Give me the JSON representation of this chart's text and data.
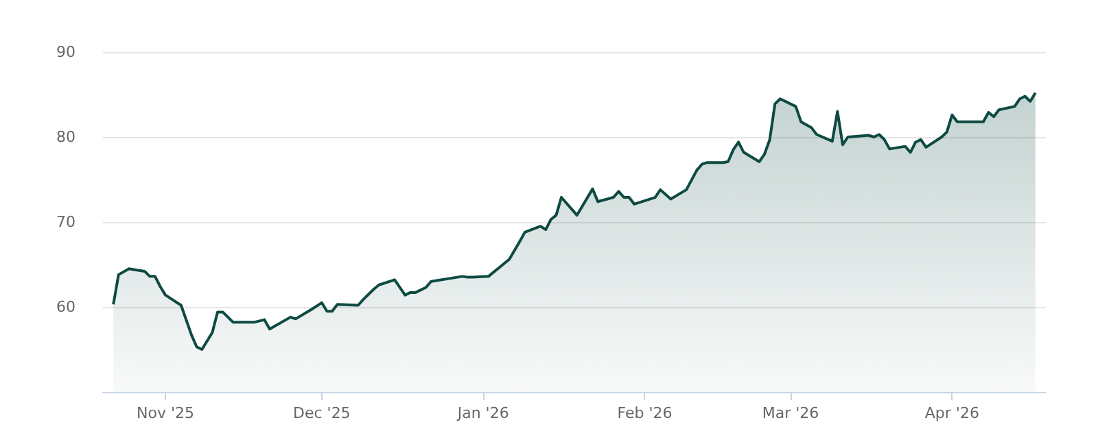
{
  "chart_data": {
    "type": "area",
    "x": [
      "2025-10-22",
      "2025-10-23",
      "2025-10-25",
      "2025-10-28",
      "2025-10-29",
      "2025-10-30",
      "2025-10-31",
      "2025-11-01",
      "2025-11-04",
      "2025-11-06",
      "2025-11-07",
      "2025-11-08",
      "2025-11-10",
      "2025-11-11",
      "2025-11-12",
      "2025-11-14",
      "2025-11-18",
      "2025-11-20",
      "2025-11-21",
      "2025-11-25",
      "2025-11-26",
      "2025-11-29",
      "2025-12-01",
      "2025-12-02",
      "2025-12-03",
      "2025-12-04",
      "2025-12-08",
      "2025-12-09",
      "2025-12-11",
      "2025-12-12",
      "2025-12-15",
      "2025-12-17",
      "2025-12-18",
      "2025-12-19",
      "2025-12-21",
      "2025-12-22",
      "2025-12-28",
      "2025-12-29",
      "2025-12-30",
      "2026-01-02",
      "2026-01-06",
      "2026-01-08",
      "2026-01-09",
      "2026-01-12",
      "2026-01-13",
      "2026-01-14",
      "2026-01-15",
      "2026-01-16",
      "2026-01-19",
      "2026-01-22",
      "2026-01-23",
      "2026-01-26",
      "2026-01-27",
      "2026-01-28",
      "2026-01-29",
      "2026-01-30",
      "2026-02-03",
      "2026-02-04",
      "2026-02-06",
      "2026-02-09",
      "2026-02-11",
      "2026-02-12",
      "2026-02-13",
      "2026-02-16",
      "2026-02-17",
      "2026-02-18",
      "2026-02-19",
      "2026-02-20",
      "2026-02-23",
      "2026-02-24",
      "2026-02-25",
      "2026-02-26",
      "2026-02-27",
      "2026-03-02",
      "2026-03-03",
      "2026-03-05",
      "2026-03-06",
      "2026-03-09",
      "2026-03-10",
      "2026-03-11",
      "2026-03-12",
      "2026-03-16",
      "2026-03-17",
      "2026-03-18",
      "2026-03-19",
      "2026-03-20",
      "2026-03-23",
      "2026-03-24",
      "2026-03-25",
      "2026-03-26",
      "2026-03-27",
      "2026-03-30",
      "2026-03-31",
      "2026-04-01",
      "2026-04-02",
      "2026-04-07",
      "2026-04-08",
      "2026-04-09",
      "2026-04-10",
      "2026-04-13",
      "2026-04-14",
      "2026-04-15",
      "2026-04-16",
      "2026-04-17"
    ],
    "series": [
      {
        "color": "#0d4a42",
        "values": [
          60.3,
          63.8,
          64.5,
          64.2,
          63.6,
          63.6,
          62.4,
          61.4,
          60.2,
          56.7,
          55.3,
          55.0,
          57.0,
          59.4,
          59.4,
          58.2,
          58.2,
          58.5,
          57.4,
          58.8,
          58.6,
          59.7,
          60.5,
          59.5,
          59.5,
          60.3,
          60.2,
          60.9,
          62.1,
          62.6,
          63.2,
          61.4,
          61.7,
          61.7,
          62.3,
          63.0,
          63.6,
          63.5,
          63.5,
          63.6,
          65.6,
          67.7,
          68.8,
          69.5,
          69.1,
          70.3,
          70.8,
          72.9,
          70.8,
          73.9,
          72.4,
          72.9,
          73.6,
          72.9,
          72.9,
          72.1,
          72.9,
          73.8,
          72.7,
          73.8,
          76.1,
          76.8,
          77.0,
          77.0,
          77.1,
          78.5,
          79.4,
          78.2,
          77.1,
          78.0,
          79.7,
          83.9,
          84.5,
          83.6,
          81.8,
          81.1,
          80.3,
          79.5,
          83.0,
          79.1,
          80.0,
          80.2,
          80.0,
          80.3,
          79.7,
          78.6,
          78.9,
          78.2,
          79.4,
          79.7,
          78.8,
          80.0,
          80.6,
          82.6,
          81.8,
          81.8,
          82.9,
          82.4,
          83.2,
          83.6,
          84.5,
          84.8,
          84.2,
          85.2
        ]
      }
    ],
    "xlim": [
      "2025-10-20",
      "2026-04-19"
    ],
    "xticks": [
      {
        "value": "2025-11-01",
        "label": "Nov '25"
      },
      {
        "value": "2025-12-01",
        "label": "Dec '25"
      },
      {
        "value": "2026-01-01",
        "label": "Jan '26"
      },
      {
        "value": "2026-02-01",
        "label": "Feb '26"
      },
      {
        "value": "2026-03-01",
        "label": "Mar '26"
      },
      {
        "value": "2026-04-01",
        "label": "Apr '26"
      }
    ],
    "ylim": [
      50,
      90
    ],
    "yticks": [
      60,
      70,
      80,
      90
    ],
    "grid": "y"
  }
}
